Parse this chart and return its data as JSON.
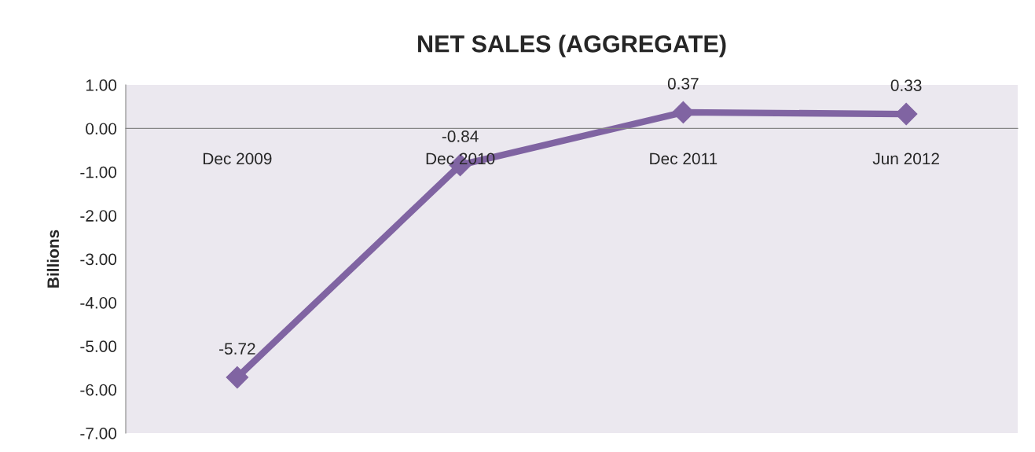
{
  "chart_data": {
    "type": "line",
    "title": "NET SALES (AGGREGATE)",
    "ylabel": "Billions",
    "categories": [
      "Dec 2009",
      "Dec 2010",
      "Dec 2011",
      "Jun 2012"
    ],
    "series": [
      {
        "color": "#8064a2",
        "values": [
          -5.72,
          -0.84,
          0.37,
          0.33
        ]
      }
    ],
    "ylim": [
      -7,
      1
    ],
    "yticks": [
      {
        "value": -7,
        "label": "-7.00"
      },
      {
        "value": -6,
        "label": "-6.00"
      },
      {
        "value": -5,
        "label": "-5.00"
      },
      {
        "value": -4,
        "label": "-4.00"
      },
      {
        "value": -3,
        "label": "-3.00"
      },
      {
        "value": -2,
        "label": "-2.00"
      },
      {
        "value": -1,
        "label": "-1.00"
      },
      {
        "value": 0,
        "label": "0.00"
      },
      {
        "value": 1,
        "label": "1.00"
      }
    ],
    "data_labels": true,
    "marker": "diamond",
    "line_style": "solid",
    "grid": false
  }
}
